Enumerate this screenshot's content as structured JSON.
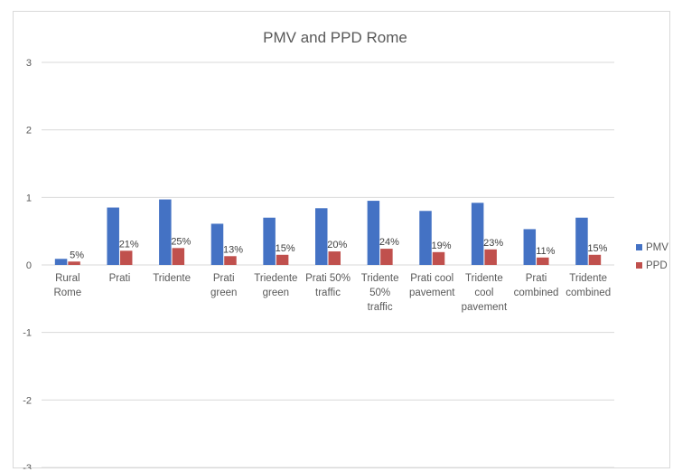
{
  "chart_data": {
    "type": "bar",
    "title": "PMV and PPD Rome",
    "categories": [
      [
        "Rural",
        "Rome"
      ],
      [
        "Prati"
      ],
      [
        "Tridente"
      ],
      [
        "Prati",
        "green"
      ],
      [
        "Triedente",
        "green"
      ],
      [
        "Prati 50%",
        "traffic"
      ],
      [
        "Tridente",
        "50%",
        "traffic"
      ],
      [
        "Prati cool",
        "pavement"
      ],
      [
        "Tridente",
        "cool",
        "pavement"
      ],
      [
        "Prati",
        "combined"
      ],
      [
        "Tridente",
        "combined"
      ]
    ],
    "series": [
      {
        "name": "PMV",
        "color": "#4472c4",
        "values": [
          0.09,
          0.85,
          0.97,
          0.61,
          0.7,
          0.84,
          0.95,
          0.8,
          0.92,
          0.53,
          0.7
        ]
      },
      {
        "name": "PPD",
        "color": "#c0504d",
        "values": [
          0.05,
          0.21,
          0.25,
          0.13,
          0.15,
          0.2,
          0.24,
          0.19,
          0.23,
          0.11,
          0.15
        ],
        "data_labels": [
          "5%",
          "21%",
          "25%",
          "13%",
          "15%",
          "20%",
          "24%",
          "19%",
          "23%",
          "11%",
          "15%"
        ]
      }
    ],
    "ylim": [
      -3,
      3
    ],
    "yticks": [
      3,
      2,
      1,
      0,
      -1,
      -2,
      -3
    ],
    "xlabel": "",
    "ylabel": "",
    "grid": true,
    "legend_position": "right"
  }
}
